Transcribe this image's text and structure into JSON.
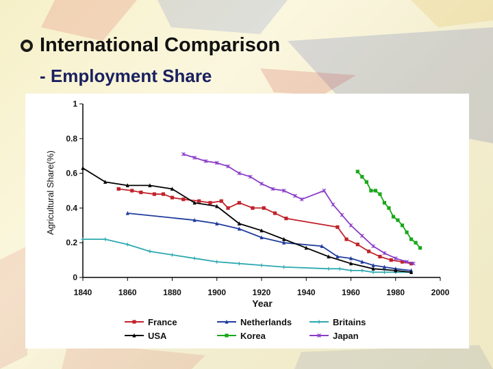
{
  "slide": {
    "title": "International Comparison",
    "subtitle": "- Employment Share"
  },
  "chart_data": {
    "type": "line",
    "title": "",
    "xlabel": "Year",
    "ylabel": "Agricultural Share(%)",
    "xlim": [
      1840,
      2000
    ],
    "ylim": [
      0,
      1
    ],
    "x_ticks": [
      1840,
      1860,
      1880,
      1900,
      1920,
      1940,
      1960,
      1980,
      2000
    ],
    "y_ticks": [
      "0",
      "0.2",
      "0.4",
      "0.6",
      "0.8",
      "1"
    ],
    "grid": false,
    "legend_position": "bottom",
    "series": [
      {
        "name": "France",
        "color": "#c0232a",
        "marker": "square",
        "x": [
          1856,
          1862,
          1866,
          1872,
          1876,
          1880,
          1885,
          1892,
          1897,
          1902,
          1905,
          1910,
          1916,
          1921,
          1926,
          1931,
          1954,
          1958,
          1963,
          1968,
          1973,
          1978,
          1983,
          1987
        ],
        "y": [
          0.51,
          0.5,
          0.49,
          0.48,
          0.48,
          0.46,
          0.45,
          0.44,
          0.43,
          0.44,
          0.4,
          0.43,
          0.4,
          0.4,
          0.37,
          0.34,
          0.29,
          0.22,
          0.19,
          0.15,
          0.12,
          0.1,
          0.09,
          0.08
        ]
      },
      {
        "name": "Netherlands",
        "color": "#1f3c9c",
        "marker": "triangle",
        "x": [
          1860,
          1890,
          1900,
          1910,
          1920,
          1930,
          1947,
          1954,
          1960,
          1965,
          1970,
          1975,
          1980,
          1987
        ],
        "y": [
          0.37,
          0.33,
          0.31,
          0.28,
          0.23,
          0.2,
          0.18,
          0.12,
          0.11,
          0.09,
          0.07,
          0.06,
          0.05,
          0.04
        ]
      },
      {
        "name": "Britains",
        "color": "#2aa8b0",
        "marker": "plus",
        "x": [
          1840,
          1850,
          1860,
          1870,
          1880,
          1890,
          1900,
          1910,
          1920,
          1930,
          1950,
          1955,
          1960,
          1965,
          1970,
          1975,
          1980,
          1987
        ],
        "y": [
          0.22,
          0.22,
          0.19,
          0.15,
          0.13,
          0.11,
          0.09,
          0.08,
          0.07,
          0.06,
          0.05,
          0.05,
          0.04,
          0.04,
          0.03,
          0.03,
          0.03,
          0.03
        ]
      },
      {
        "name": "USA",
        "color": "#000000",
        "marker": "triangle",
        "x": [
          1840,
          1850,
          1860,
          1870,
          1880,
          1890,
          1900,
          1910,
          1920,
          1930,
          1940,
          1950,
          1960,
          1970,
          1980,
          1987
        ],
        "y": [
          0.63,
          0.55,
          0.53,
          0.53,
          0.51,
          0.43,
          0.41,
          0.31,
          0.27,
          0.22,
          0.17,
          0.12,
          0.08,
          0.05,
          0.04,
          0.03
        ]
      },
      {
        "name": "Korea",
        "color": "#18a818",
        "marker": "square",
        "x": [
          1963,
          1965,
          1967,
          1969,
          1971,
          1973,
          1975,
          1977,
          1979,
          1981,
          1983,
          1985,
          1987,
          1989,
          1991
        ],
        "y": [
          0.61,
          0.58,
          0.55,
          0.5,
          0.5,
          0.48,
          0.43,
          0.4,
          0.35,
          0.33,
          0.3,
          0.26,
          0.22,
          0.2,
          0.17
        ]
      },
      {
        "name": "Japan",
        "color": "#8a3cc8",
        "marker": "star",
        "x": [
          1885,
          1890,
          1895,
          1900,
          1905,
          1910,
          1915,
          1920,
          1925,
          1930,
          1935,
          1938,
          1948,
          1952,
          1956,
          1960,
          1965,
          1970,
          1975,
          1980,
          1985,
          1988
        ],
        "y": [
          0.71,
          0.69,
          0.67,
          0.66,
          0.64,
          0.6,
          0.58,
          0.54,
          0.51,
          0.5,
          0.47,
          0.45,
          0.5,
          0.42,
          0.36,
          0.3,
          0.24,
          0.18,
          0.14,
          0.11,
          0.09,
          0.08
        ]
      }
    ]
  }
}
